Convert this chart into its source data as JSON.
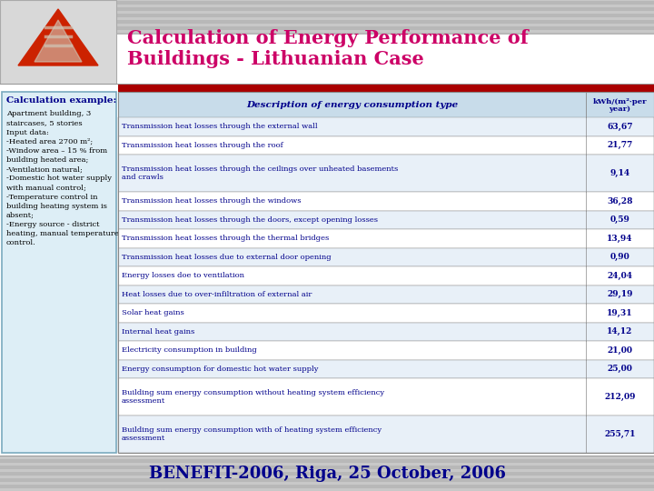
{
  "title_line1": "Calculation of Energy Performance of",
  "title_line2": "Buildings - Lithuanian Case",
  "title_color": "#cc0066",
  "slide_bg": "#b8b8b8",
  "content_bg": "#ffffff",
  "red_bar_color": "#aa0000",
  "col1_header": "Description of energy consumption type",
  "col2_header": "kWh/(m²·per\nyear)",
  "table_rows": [
    [
      "Transmission heat losses through the external wall",
      "63,67"
    ],
    [
      "Transmission heat losses through the roof",
      "21,77"
    ],
    [
      "Transmission heat losses through the ceilings over unheated basements\nand crawls",
      "9,14"
    ],
    [
      "Transmission heat losses through the windows",
      "36,28"
    ],
    [
      "Transmission heat losses through the doors, except opening losses",
      "0,59"
    ],
    [
      "Transmission heat losses through the thermal bridges",
      "13,94"
    ],
    [
      "Transmission heat losses due to external door opening",
      "0,90"
    ],
    [
      "Energy losses doe to ventilation",
      "24,04"
    ],
    [
      "Heat losses due to over-infiltration of external air",
      "29,19"
    ],
    [
      "Solar heat gains",
      "19,31"
    ],
    [
      "Internal heat gains",
      "14,12"
    ],
    [
      "Electricity consumption in building",
      "21,00"
    ],
    [
      "Energy consumption for domestic hot water supply",
      "25,00"
    ],
    [
      "Building sum energy consumption without heating system efficiency\nassessment",
      "212,09"
    ],
    [
      "Building sum energy consumption with of heating system efficiency\nassessment",
      "255,71"
    ]
  ],
  "left_box_title": "Calculation example:",
  "left_box_text_parts": [
    "Apartment building, 3\nstaircases, 5 stories",
    "Input data:\n-Heated area 2700 m²;\n-Window area – 15 % from\nbuilding heated area;\n-Ventilation natural;\n-Domestic hot water supply\nwith manual control;\n-Temperature control in\nbuilding heating system is\nabsent;\n-Energy source - district\nheating, manual temperature\ncontrol."
  ],
  "left_box_bg": "#ddeef6",
  "left_box_border": "#7aaabf",
  "footer_text": "BENEFIT-2006, Riga, 25 October, 2006",
  "footer_color": "#00008b",
  "table_text_color": "#00008b",
  "header_text_color": "#00008b",
  "left_title_color": "#00008b",
  "header_bg": "#c8dcea",
  "stripe_even": "#e8f0f8",
  "stripe_odd": "#ffffff",
  "border_color": "#888888",
  "sep_line_color": "#999999",
  "stripe_bg_color": "#d0d0d0"
}
